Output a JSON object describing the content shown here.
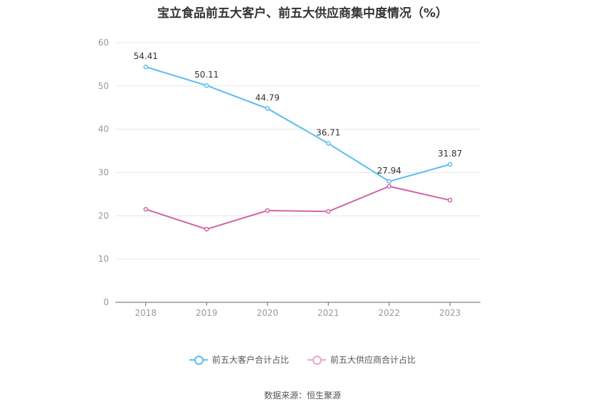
{
  "chart_data": {
    "type": "line",
    "title": "宝立食品前五大客户、前五大供应商集中度情况（%）",
    "categories": [
      "2018",
      "2019",
      "2020",
      "2021",
      "2022",
      "2023"
    ],
    "ylim": [
      0,
      60
    ],
    "yticks": [
      0,
      10,
      20,
      30,
      40,
      50,
      60
    ],
    "grid": true,
    "legend_position": "bottom",
    "series": [
      {
        "name": "前五大客户合计占比",
        "color": "#5bbcf0",
        "values": [
          54.41,
          50.11,
          44.79,
          36.71,
          27.94,
          31.87
        ],
        "labels": [
          "54.41",
          "50.11",
          "44.79",
          "36.71",
          "27.94",
          "31.87"
        ]
      },
      {
        "name": "前五大供应商合计占比",
        "color": "#d163a8",
        "values": [
          21.5,
          16.9,
          21.2,
          21.0,
          26.8,
          23.6
        ],
        "labels": []
      }
    ]
  },
  "source": "数据来源：恒生聚源"
}
